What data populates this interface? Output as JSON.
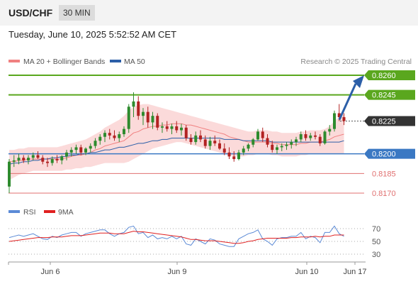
{
  "header": {
    "symbol": "USD/CHF",
    "timeframe": "30 MIN"
  },
  "timestamp": "Tuesday, June 10, 2025 5:52:52 AM CET",
  "legend": {
    "ma20": {
      "label": "MA 20 + Bollinger Bands",
      "color": "#f08080"
    },
    "ma50": {
      "label": "MA 50",
      "color": "#2c5fa8"
    },
    "credit": "Research © 2025 Trading Central"
  },
  "colors": {
    "up": "#2e8b2e",
    "down": "#b22222",
    "resistance": "#5aa71e",
    "support": "#3a78c3",
    "target": "#e07070",
    "arrow": "#2c5fa8",
    "band": "#fbdada",
    "current": "#333333"
  },
  "levels": [
    {
      "value": 0.826,
      "label": "0.8260",
      "kind": "resistance"
    },
    {
      "value": 0.8245,
      "label": "0.8245",
      "kind": "resistance"
    },
    {
      "value": 0.8225,
      "label": "0.8225",
      "kind": "current"
    },
    {
      "value": 0.82,
      "label": "0.8200",
      "kind": "support"
    },
    {
      "value": 0.8185,
      "label": "0.8185",
      "kind": "target"
    },
    {
      "value": 0.817,
      "label": "0.8170",
      "kind": "target"
    }
  ],
  "rsi": {
    "label": "RSI",
    "ma_label": "9MA",
    "rsi_color": "#5b8ad6",
    "ma_color": "#e02020",
    "ticks": [
      "70",
      "50",
      "30"
    ]
  },
  "chart_data": {
    "type": "candlestick",
    "x_ticks": [
      "Jun 6",
      "Jun 9",
      "Jun 10",
      "Jun 17"
    ],
    "ylim": [
      0.817,
      0.8265
    ],
    "forecast": {
      "from": 0.8225,
      "to": 0.826
    },
    "candles": [
      [
        0.8175,
        0.8196,
        0.817,
        0.8194
      ],
      [
        0.8194,
        0.8199,
        0.819,
        0.8195
      ],
      [
        0.8195,
        0.82,
        0.8192,
        0.8197
      ],
      [
        0.8197,
        0.8199,
        0.8193,
        0.8195
      ],
      [
        0.8195,
        0.8199,
        0.8192,
        0.8197
      ],
      [
        0.8197,
        0.8201,
        0.8195,
        0.8199
      ],
      [
        0.8199,
        0.8202,
        0.8196,
        0.8197
      ],
      [
        0.8197,
        0.8199,
        0.8192,
        0.8194
      ],
      [
        0.8194,
        0.8197,
        0.819,
        0.8193
      ],
      [
        0.8193,
        0.8198,
        0.8191,
        0.8196
      ],
      [
        0.8196,
        0.8199,
        0.8193,
        0.8195
      ],
      [
        0.8195,
        0.8199,
        0.8192,
        0.8198
      ],
      [
        0.8198,
        0.8203,
        0.8195,
        0.8201
      ],
      [
        0.8201,
        0.8205,
        0.8198,
        0.8203
      ],
      [
        0.8203,
        0.8207,
        0.82,
        0.8205
      ],
      [
        0.8205,
        0.8207,
        0.8199,
        0.8201
      ],
      [
        0.8201,
        0.8205,
        0.8199,
        0.8204
      ],
      [
        0.8204,
        0.8208,
        0.8201,
        0.8206
      ],
      [
        0.8206,
        0.8212,
        0.8204,
        0.821
      ],
      [
        0.821,
        0.8215,
        0.8207,
        0.8213
      ],
      [
        0.8213,
        0.8218,
        0.8209,
        0.8216
      ],
      [
        0.8216,
        0.8219,
        0.8211,
        0.8214
      ],
      [
        0.8214,
        0.8218,
        0.821,
        0.8212
      ],
      [
        0.8212,
        0.8217,
        0.8209,
        0.8215
      ],
      [
        0.8215,
        0.8221,
        0.8213,
        0.8219
      ],
      [
        0.8219,
        0.8238,
        0.8216,
        0.8236
      ],
      [
        0.8236,
        0.8247,
        0.8228,
        0.824
      ],
      [
        0.824,
        0.8244,
        0.8226,
        0.8229
      ],
      [
        0.8229,
        0.8235,
        0.8222,
        0.8232
      ],
      [
        0.8232,
        0.8236,
        0.822,
        0.8224
      ],
      [
        0.8224,
        0.8232,
        0.8219,
        0.8229
      ],
      [
        0.8229,
        0.8231,
        0.8218,
        0.822
      ],
      [
        0.822,
        0.8224,
        0.8216,
        0.8221
      ],
      [
        0.8221,
        0.8225,
        0.8217,
        0.8219
      ],
      [
        0.8219,
        0.8223,
        0.8215,
        0.8221
      ],
      [
        0.8221,
        0.8225,
        0.8216,
        0.8218
      ],
      [
        0.8218,
        0.8223,
        0.8214,
        0.822
      ],
      [
        0.822,
        0.8222,
        0.821,
        0.8212
      ],
      [
        0.8212,
        0.8215,
        0.8207,
        0.8209
      ],
      [
        0.8209,
        0.8217,
        0.8207,
        0.8214
      ],
      [
        0.8214,
        0.8218,
        0.8209,
        0.8211
      ],
      [
        0.8211,
        0.8214,
        0.8204,
        0.8206
      ],
      [
        0.8206,
        0.8213,
        0.8203,
        0.821
      ],
      [
        0.821,
        0.8214,
        0.8206,
        0.8208
      ],
      [
        0.8208,
        0.8211,
        0.8203,
        0.8204
      ],
      [
        0.8204,
        0.8208,
        0.8199,
        0.8201
      ],
      [
        0.8201,
        0.8205,
        0.8196,
        0.8198
      ],
      [
        0.8198,
        0.8202,
        0.8194,
        0.8196
      ],
      [
        0.8196,
        0.8203,
        0.8195,
        0.8201
      ],
      [
        0.8201,
        0.8206,
        0.8199,
        0.8204
      ],
      [
        0.8204,
        0.8208,
        0.8202,
        0.8207
      ],
      [
        0.8207,
        0.8212,
        0.8205,
        0.8211
      ],
      [
        0.8211,
        0.8219,
        0.821,
        0.8217
      ],
      [
        0.8217,
        0.822,
        0.8209,
        0.8212
      ],
      [
        0.8212,
        0.8215,
        0.8205,
        0.8207
      ],
      [
        0.8207,
        0.821,
        0.8201,
        0.8203
      ],
      [
        0.8203,
        0.8207,
        0.82,
        0.8205
      ],
      [
        0.8205,
        0.8208,
        0.8202,
        0.8206
      ],
      [
        0.8206,
        0.8209,
        0.8203,
        0.8207
      ],
      [
        0.8207,
        0.8211,
        0.8204,
        0.8209
      ],
      [
        0.8209,
        0.8213,
        0.8206,
        0.8211
      ],
      [
        0.8211,
        0.8217,
        0.8209,
        0.8215
      ],
      [
        0.8215,
        0.8218,
        0.821,
        0.8212
      ],
      [
        0.8212,
        0.8216,
        0.821,
        0.8214
      ],
      [
        0.8214,
        0.8217,
        0.8211,
        0.8213
      ],
      [
        0.8213,
        0.8215,
        0.8206,
        0.8208
      ],
      [
        0.8208,
        0.8218,
        0.8207,
        0.8217
      ],
      [
        0.8217,
        0.8222,
        0.8214,
        0.8219
      ],
      [
        0.8219,
        0.8233,
        0.8217,
        0.8231
      ],
      [
        0.8231,
        0.8238,
        0.8225,
        0.8228
      ],
      [
        0.8228,
        0.8231,
        0.8222,
        0.8225
      ]
    ],
    "ma20": [
      0.8194,
      0.8194,
      0.8195,
      0.8195,
      0.8196,
      0.8196,
      0.8196,
      0.8196,
      0.8196,
      0.8196,
      0.8196,
      0.8196,
      0.8197,
      0.8198,
      0.8199,
      0.8199,
      0.82,
      0.8201,
      0.8203,
      0.8204,
      0.8206,
      0.8207,
      0.8208,
      0.8209,
      0.821,
      0.8213,
      0.8216,
      0.8217,
      0.8219,
      0.822,
      0.8221,
      0.8221,
      0.8222,
      0.8222,
      0.8223,
      0.8223,
      0.8223,
      0.8222,
      0.8222,
      0.8221,
      0.822,
      0.8219,
      0.8218,
      0.8217,
      0.8216,
      0.8215,
      0.8213,
      0.8212,
      0.8211,
      0.821,
      0.8209,
      0.8209,
      0.8209,
      0.8209,
      0.8209,
      0.8208,
      0.8208,
      0.8207,
      0.8207,
      0.8207,
      0.8207,
      0.8208,
      0.8208,
      0.8209,
      0.8209,
      0.8209,
      0.821,
      0.8211,
      0.8213,
      0.8214,
      0.8215
    ],
    "bb_upper": [
      0.8203,
      0.8203,
      0.8204,
      0.8204,
      0.8205,
      0.8205,
      0.8205,
      0.8205,
      0.8205,
      0.8205,
      0.8205,
      0.8206,
      0.8207,
      0.8208,
      0.8209,
      0.821,
      0.8211,
      0.8213,
      0.8215,
      0.8217,
      0.822,
      0.8222,
      0.8224,
      0.8226,
      0.8229,
      0.8233,
      0.8236,
      0.8237,
      0.8238,
      0.8238,
      0.8237,
      0.8236,
      0.8235,
      0.8234,
      0.8233,
      0.8232,
      0.8231,
      0.823,
      0.8229,
      0.8228,
      0.8227,
      0.8226,
      0.8225,
      0.8224,
      0.8223,
      0.8222,
      0.8221,
      0.822,
      0.8219,
      0.8218,
      0.8217,
      0.8217,
      0.8218,
      0.8218,
      0.8218,
      0.8217,
      0.8217,
      0.8216,
      0.8216,
      0.8216,
      0.8216,
      0.8217,
      0.8217,
      0.8218,
      0.8218,
      0.8218,
      0.8219,
      0.8221,
      0.8225,
      0.8228,
      0.823
    ],
    "bb_lower": [
      0.818,
      0.8182,
      0.8184,
      0.8185,
      0.8186,
      0.8187,
      0.8187,
      0.8187,
      0.8187,
      0.8187,
      0.8187,
      0.8187,
      0.8188,
      0.8188,
      0.8189,
      0.8189,
      0.819,
      0.819,
      0.8191,
      0.8192,
      0.8193,
      0.8193,
      0.8193,
      0.8193,
      0.8193,
      0.8194,
      0.8196,
      0.8198,
      0.82,
      0.8202,
      0.8204,
      0.8205,
      0.8206,
      0.8207,
      0.8208,
      0.8209,
      0.8209,
      0.8208,
      0.8207,
      0.8206,
      0.8205,
      0.8204,
      0.8203,
      0.8202,
      0.8201,
      0.82,
      0.8199,
      0.8198,
      0.8198,
      0.8198,
      0.8199,
      0.8199,
      0.82,
      0.82,
      0.82,
      0.8199,
      0.8199,
      0.8198,
      0.8198,
      0.8198,
      0.8198,
      0.8199,
      0.8199,
      0.82,
      0.82,
      0.82,
      0.82,
      0.82,
      0.82,
      0.82,
      0.82
    ],
    "ma50": [
      0.8192,
      0.8193,
      0.8193,
      0.8194,
      0.8194,
      0.8195,
      0.8195,
      0.8196,
      0.8196,
      0.8197,
      0.8197,
      0.8198,
      0.8198,
      0.8199,
      0.8199,
      0.82,
      0.82,
      0.8201,
      0.8201,
      0.8202,
      0.8203,
      0.8203,
      0.8204,
      0.8205,
      0.8205,
      0.8206,
      0.8207,
      0.8208,
      0.8208,
      0.8209,
      0.821,
      0.821,
      0.8211,
      0.8211,
      0.8212,
      0.8212,
      0.8212,
      0.8212,
      0.8212,
      0.8212,
      0.8212,
      0.8212,
      0.8212,
      0.8212,
      0.8212,
      0.8211,
      0.8211,
      0.8211,
      0.8211,
      0.821,
      0.821,
      0.821,
      0.821,
      0.821,
      0.821,
      0.8209,
      0.8209,
      0.8209,
      0.8209,
      0.8209,
      0.8209,
      0.8209,
      0.8209,
      0.8209,
      0.8209,
      0.8209,
      0.8209,
      0.8209,
      0.8209,
      0.8209,
      0.821
    ],
    "rsi_values": [
      56,
      58,
      60,
      58,
      60,
      62,
      58,
      54,
      53,
      58,
      56,
      60,
      62,
      64,
      64,
      58,
      62,
      64,
      66,
      68,
      68,
      62,
      58,
      62,
      64,
      72,
      74,
      62,
      64,
      56,
      60,
      54,
      56,
      54,
      58,
      54,
      58,
      46,
      44,
      54,
      50,
      46,
      54,
      52,
      46,
      44,
      42,
      42,
      54,
      58,
      62,
      64,
      68,
      54,
      50,
      44,
      54,
      56,
      56,
      58,
      58,
      64,
      54,
      58,
      56,
      48,
      64,
      64,
      74,
      62,
      58
    ],
    "rsi_ma": [
      50,
      51,
      52,
      53,
      54,
      55,
      56,
      56,
      56,
      57,
      57,
      57,
      58,
      59,
      59,
      59,
      60,
      61,
      62,
      63,
      63,
      63,
      62,
      62,
      62,
      64,
      66,
      65,
      65,
      64,
      63,
      62,
      61,
      60,
      59,
      58,
      57,
      55,
      53,
      53,
      52,
      51,
      51,
      51,
      50,
      49,
      48,
      47,
      47,
      48,
      50,
      51,
      53,
      54,
      55,
      55,
      55,
      55,
      55,
      56,
      56,
      57,
      57,
      57,
      58,
      57,
      58,
      58,
      60,
      60,
      60
    ]
  }
}
